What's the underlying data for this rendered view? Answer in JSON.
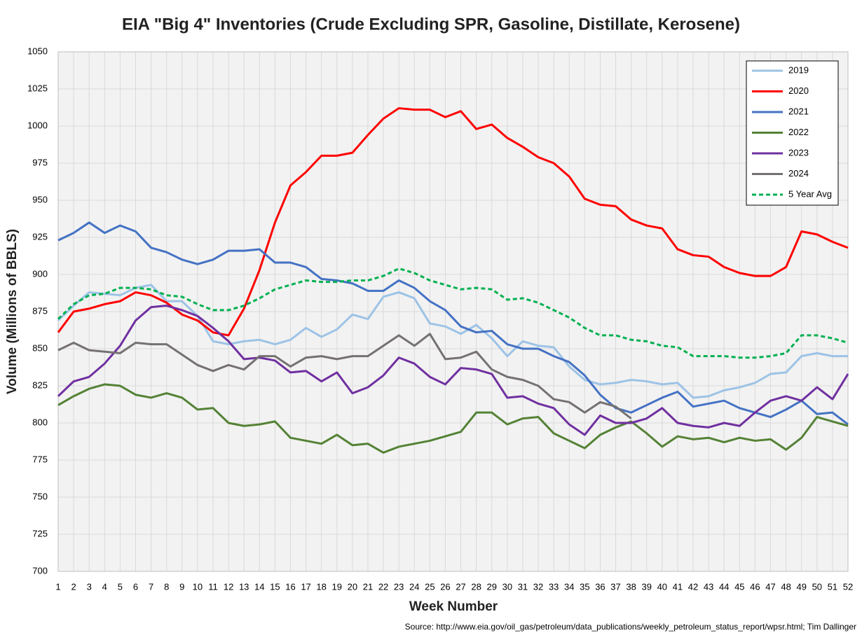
{
  "chart_data": {
    "type": "line",
    "title": "EIA \"Big 4\" Inventories (Crude Excluding SPR, Gasoline, Distillate, Kerosene)",
    "x_label": "Week Number",
    "y_label": "Volume (Millions of BBLS)",
    "source": "Source: http://www.eia.gov/oil_gas/petroleum/data_publications/weekly_petroleum_status_report/wpsr.html; Tim Dallinger",
    "x": [
      1,
      2,
      3,
      4,
      5,
      6,
      7,
      8,
      9,
      10,
      11,
      12,
      13,
      14,
      15,
      16,
      17,
      18,
      19,
      20,
      21,
      22,
      23,
      24,
      25,
      26,
      27,
      28,
      29,
      30,
      31,
      32,
      33,
      34,
      35,
      36,
      37,
      38,
      39,
      40,
      41,
      42,
      43,
      44,
      45,
      46,
      47,
      48,
      49,
      50,
      51,
      52
    ],
    "xlim": [
      1,
      52
    ],
    "xticks": [
      1,
      2,
      3,
      4,
      5,
      6,
      7,
      8,
      9,
      10,
      11,
      12,
      13,
      14,
      15,
      16,
      17,
      18,
      19,
      20,
      21,
      22,
      23,
      24,
      25,
      26,
      27,
      28,
      29,
      30,
      31,
      32,
      33,
      34,
      35,
      36,
      37,
      38,
      39,
      40,
      41,
      42,
      43,
      44,
      45,
      46,
      47,
      48,
      49,
      50,
      51,
      52
    ],
    "ylim": [
      700,
      1050
    ],
    "yticks": [
      700,
      725,
      750,
      775,
      800,
      825,
      850,
      875,
      900,
      925,
      950,
      975,
      1000,
      1025,
      1050
    ],
    "grid": true,
    "legend": "upper right",
    "series": [
      {
        "name": "2019",
        "color": "#9dc3e6",
        "values": [
          869,
          879,
          888,
          887,
          886,
          891,
          893,
          882,
          882,
          872,
          855,
          853,
          855,
          856,
          853,
          856,
          864,
          858,
          863,
          873,
          870,
          885,
          888,
          884,
          867,
          865,
          860,
          866,
          857,
          845,
          855,
          852,
          851,
          838,
          829,
          826,
          827,
          829,
          828,
          826,
          827,
          817,
          818,
          822,
          824,
          827,
          833,
          834,
          845,
          847,
          845,
          845
        ]
      },
      {
        "name": "2020",
        "color": "#ff0000",
        "values": [
          861,
          875,
          877,
          880,
          882,
          888,
          886,
          881,
          873,
          869,
          861,
          859,
          877,
          903,
          935,
          960,
          969,
          980,
          980,
          982,
          994,
          1005,
          1012,
          1011,
          1011,
          1006,
          1010,
          998,
          1001,
          992,
          986,
          979,
          975,
          966,
          951,
          947,
          946,
          937,
          933,
          931,
          917,
          913,
          912,
          905,
          901,
          899,
          899,
          905,
          929,
          927,
          922,
          918
        ]
      },
      {
        "name": "2021",
        "color": "#4472c4",
        "values": [
          923,
          928,
          935,
          928,
          933,
          929,
          918,
          915,
          910,
          907,
          910,
          916,
          916,
          917,
          908,
          908,
          905,
          897,
          896,
          894,
          889,
          889,
          896,
          891,
          882,
          876,
          865,
          861,
          862,
          853,
          850,
          850,
          845,
          841,
          832,
          819,
          810,
          807,
          812,
          817,
          821,
          811,
          813,
          815,
          810,
          807,
          804,
          809,
          815,
          806,
          807,
          799
        ]
      },
      {
        "name": "2022",
        "color": "#548235",
        "values": [
          812,
          818,
          823,
          826,
          825,
          819,
          817,
          820,
          817,
          809,
          810,
          800,
          798,
          799,
          801,
          790,
          788,
          786,
          792,
          785,
          786,
          780,
          784,
          786,
          788,
          791,
          794,
          807,
          807,
          799,
          803,
          804,
          793,
          788,
          783,
          792,
          797,
          801,
          793,
          784,
          791,
          789,
          790,
          787,
          790,
          788,
          789,
          782,
          790,
          804,
          801,
          798
        ]
      },
      {
        "name": "2023",
        "color": "#7030a0",
        "values": [
          818,
          828,
          831,
          840,
          852,
          869,
          878,
          879,
          876,
          872,
          864,
          855,
          843,
          844,
          842,
          834,
          835,
          828,
          834,
          820,
          824,
          832,
          844,
          840,
          831,
          826,
          837,
          836,
          833,
          817,
          818,
          813,
          810,
          799,
          792,
          805,
          800,
          800,
          803,
          810,
          800,
          798,
          797,
          800,
          798,
          807,
          815,
          818,
          815,
          824,
          816,
          833
        ]
      },
      {
        "name": "2024",
        "color": "#767171",
        "values": [
          849,
          854,
          849,
          848,
          847,
          854,
          853,
          853,
          846,
          839,
          835,
          839,
          836,
          845,
          845,
          838,
          844,
          845,
          843,
          845,
          845,
          852,
          859,
          852,
          860,
          843,
          844,
          848,
          836,
          831,
          829,
          825,
          816,
          814,
          807,
          814,
          811,
          803,
          null,
          null,
          null,
          null,
          null,
          null,
          null,
          null,
          null,
          null,
          null,
          null,
          null,
          null
        ]
      },
      {
        "name": "5 Year Avg",
        "color": "#00b050",
        "dashed": true,
        "values": [
          870,
          880,
          886,
          887,
          891,
          891,
          890,
          886,
          885,
          880,
          876,
          876,
          879,
          884,
          890,
          893,
          896,
          895,
          895,
          896,
          896,
          899,
          904,
          901,
          896,
          893,
          890,
          891,
          890,
          883,
          884,
          881,
          876,
          871,
          864,
          859,
          859,
          856,
          855,
          852,
          851,
          845,
          845,
          845,
          844,
          844,
          845,
          847,
          859,
          859,
          857,
          854
        ]
      }
    ]
  }
}
